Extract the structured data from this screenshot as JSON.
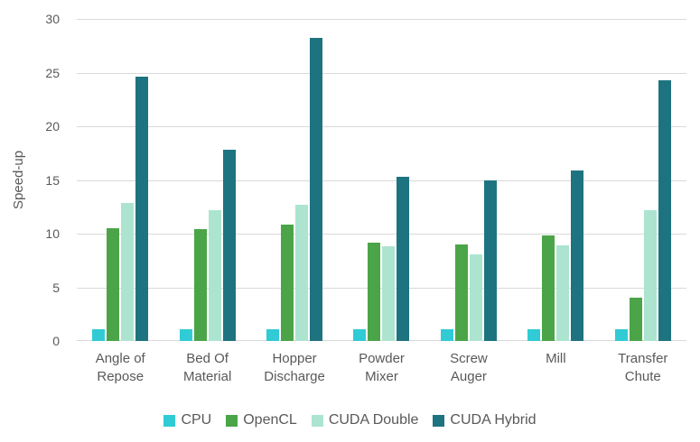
{
  "chart_data": {
    "type": "bar",
    "title": "",
    "xlabel": "",
    "ylabel": "Speed-up",
    "ylim": [
      0,
      30
    ],
    "yticks": [
      0,
      5,
      10,
      15,
      20,
      25,
      30
    ],
    "grid": true,
    "legend_position": "bottom",
    "text_color": "#595959",
    "grid_color": "#d9d9d9",
    "categories": [
      "Angle of Repose",
      "Bed Of Material",
      "Hopper Discharge",
      "Powder Mixer",
      "Screw Auger",
      "Mill",
      "Transfer Chute"
    ],
    "category_lines": [
      [
        "Angle of",
        "Repose"
      ],
      [
        "Bed Of",
        "Material"
      ],
      [
        "Hopper",
        "Discharge"
      ],
      [
        "Powder",
        "Mixer"
      ],
      [
        "Screw",
        "Auger"
      ],
      [
        "Mill"
      ],
      [
        "Transfer",
        "Chute"
      ]
    ],
    "series": [
      {
        "name": "CPU",
        "color": "#30CBD5",
        "values": [
          1.1,
          1.1,
          1.1,
          1.1,
          1.1,
          1.1,
          1.1
        ]
      },
      {
        "name": "OpenCL",
        "color": "#4BA548",
        "values": [
          10.5,
          10.4,
          10.8,
          9.2,
          9.0,
          9.8,
          4.0
        ]
      },
      {
        "name": "CUDA Double",
        "color": "#ACE4D0",
        "values": [
          12.9,
          12.2,
          12.7,
          8.8,
          8.1,
          8.9,
          12.2
        ]
      },
      {
        "name": "CUDA Hybrid",
        "color": "#1E7380",
        "values": [
          24.6,
          17.8,
          28.2,
          15.3,
          15.0,
          15.9,
          24.3
        ]
      }
    ]
  }
}
